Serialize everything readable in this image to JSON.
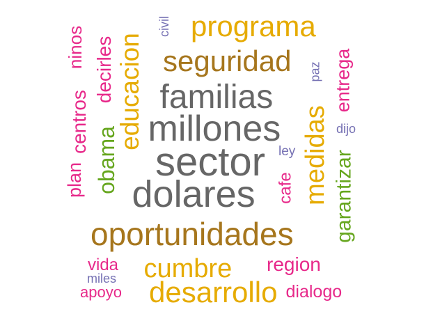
{
  "words": [
    {
      "text": "sector",
      "color": "#666666",
      "orientation": "horizontal"
    },
    {
      "text": "millones",
      "color": "#666666",
      "orientation": "horizontal"
    },
    {
      "text": "familias",
      "color": "#666666",
      "orientation": "horizontal"
    },
    {
      "text": "dolares",
      "color": "#666666",
      "orientation": "horizontal"
    },
    {
      "text": "oportunidades",
      "color": "#a6761d",
      "orientation": "horizontal"
    },
    {
      "text": "seguridad",
      "color": "#a6761d",
      "orientation": "horizontal"
    },
    {
      "text": "programa",
      "color": "#e6ab02",
      "orientation": "horizontal"
    },
    {
      "text": "educacion",
      "color": "#e6ab02",
      "orientation": "vertical"
    },
    {
      "text": "medidas",
      "color": "#e6ab02",
      "orientation": "vertical"
    },
    {
      "text": "desarrollo",
      "color": "#e6ab02",
      "orientation": "horizontal"
    },
    {
      "text": "cumbre",
      "color": "#e6ab02",
      "orientation": "horizontal"
    },
    {
      "text": "garantizar",
      "color": "#66a61e",
      "orientation": "vertical"
    },
    {
      "text": "obama",
      "color": "#66a61e",
      "orientation": "vertical"
    },
    {
      "text": "entrega",
      "color": "#e7298a",
      "orientation": "vertical"
    },
    {
      "text": "centros",
      "color": "#e7298a",
      "orientation": "vertical"
    },
    {
      "text": "decirles",
      "color": "#e7298a",
      "orientation": "vertical"
    },
    {
      "text": "ninos",
      "color": "#e7298a",
      "orientation": "vertical"
    },
    {
      "text": "plan",
      "color": "#e7298a",
      "orientation": "vertical"
    },
    {
      "text": "cafe",
      "color": "#e7298a",
      "orientation": "vertical"
    },
    {
      "text": "region",
      "color": "#e7298a",
      "orientation": "horizontal"
    },
    {
      "text": "dialogo",
      "color": "#e7298a",
      "orientation": "horizontal"
    },
    {
      "text": "vida",
      "color": "#e7298a",
      "orientation": "horizontal"
    },
    {
      "text": "apoyo",
      "color": "#e7298a",
      "orientation": "horizontal"
    },
    {
      "text": "civil",
      "color": "#7570b3",
      "orientation": "vertical"
    },
    {
      "text": "paz",
      "color": "#7570b3",
      "orientation": "vertical"
    },
    {
      "text": "dijo",
      "color": "#7570b3",
      "orientation": "horizontal"
    },
    {
      "text": "ley",
      "color": "#7570b3",
      "orientation": "horizontal"
    },
    {
      "text": "miles",
      "color": "#7570b3",
      "orientation": "horizontal"
    }
  ]
}
